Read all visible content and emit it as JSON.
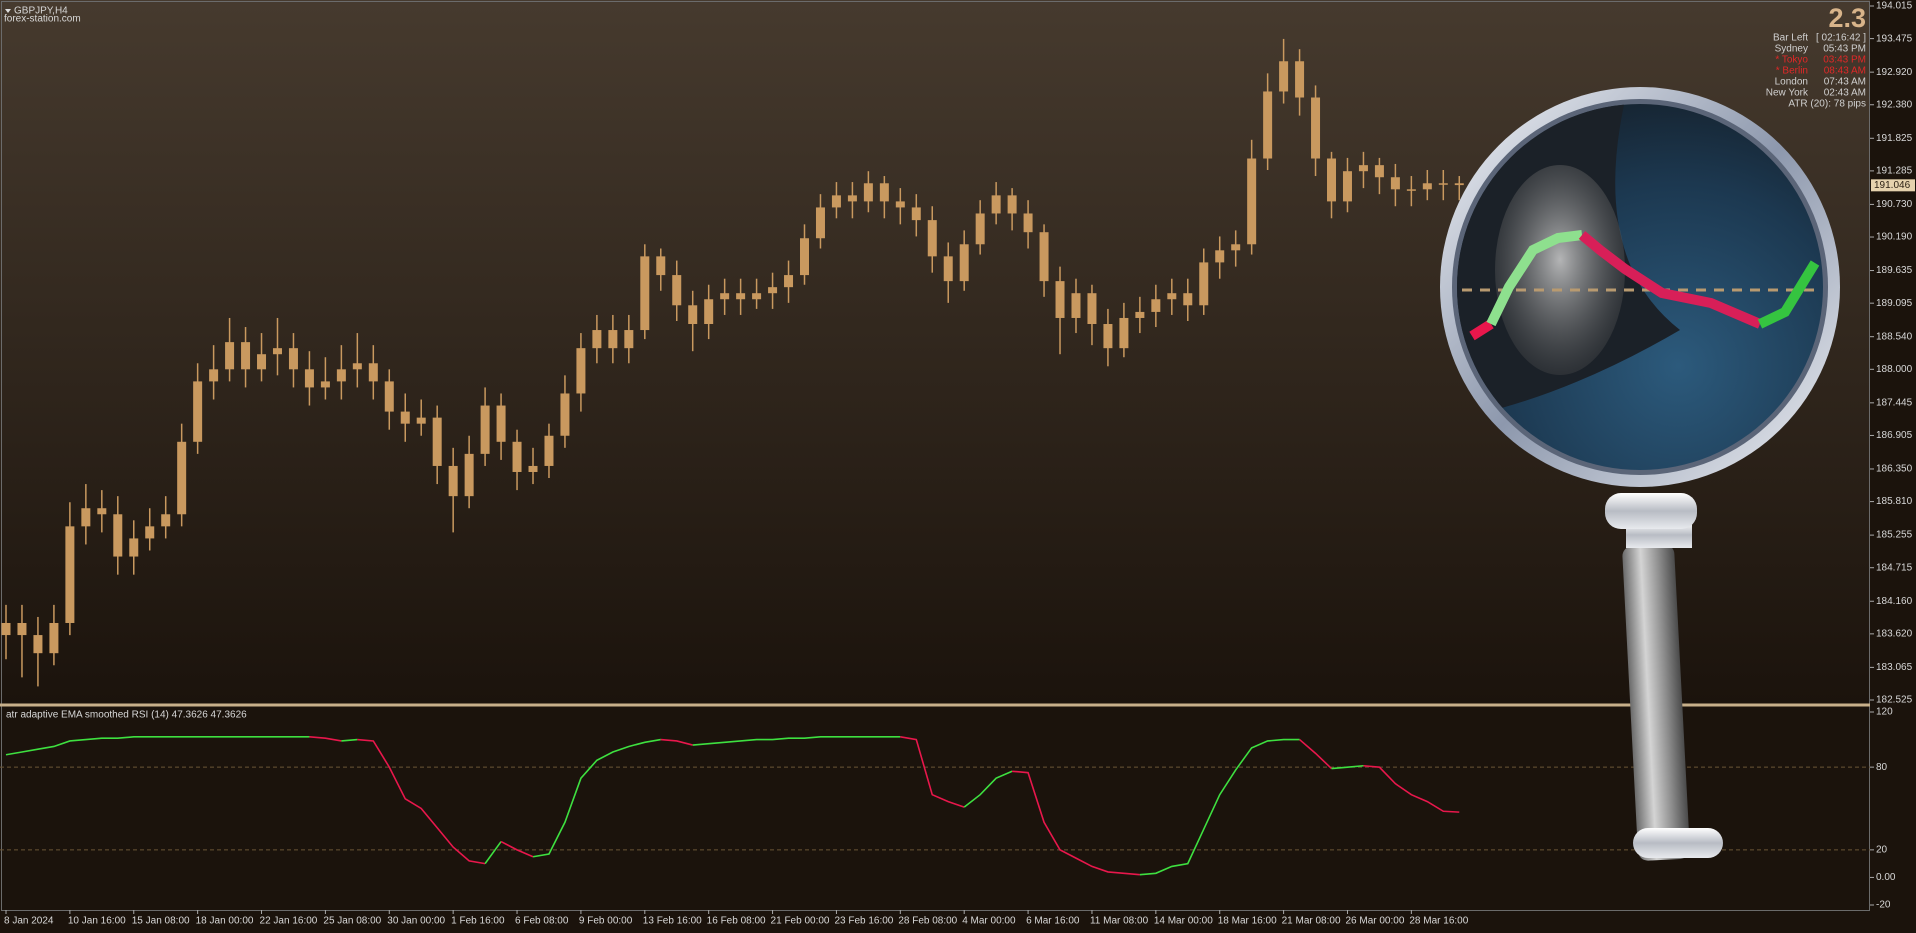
{
  "chart_data": [
    {
      "type": "candlestick",
      "title": "GBPJPY,H4",
      "subtitle": "forex-station.com",
      "color": "#c9995f",
      "ylim": [
        182.525,
        194.015
      ],
      "yticks": [
        194.015,
        193.475,
        {
          "value": 192.92,
          "label": "192.920"
        },
        {
          "value": 192.38,
          "label": "192.380"
        },
        191.825,
        191.285,
        {
          "value": 190.73,
          "label": "190.730"
        },
        {
          "value": 190.19,
          "label": "190.190"
        },
        189.635,
        189.095,
        {
          "value": 188.54,
          "label": "188.540"
        },
        {
          "value": 188,
          "label": "188.000"
        },
        187.445,
        186.905,
        {
          "value": 186.35,
          "label": "186.350"
        },
        {
          "value": 185.81,
          "label": "185.810"
        },
        185.255,
        184.715,
        {
          "value": 184.16,
          "label": "184.160"
        },
        {
          "value": 183.62,
          "label": "183.620"
        },
        183.065,
        182.525
      ],
      "current_price": 191.046,
      "open": [
        183.6,
        183.8,
        183.6,
        183.3,
        183.8,
        185.4,
        185.7,
        185.6,
        184.9,
        185.2,
        185.4,
        185.6,
        186.8,
        187.8,
        188.0,
        188.45,
        188.0,
        188.25,
        188.35,
        188.0,
        187.7,
        187.8,
        188.0,
        188.1,
        187.8,
        187.3,
        187.1,
        187.2,
        186.4,
        185.9,
        186.6,
        187.4,
        186.8,
        186.3,
        186.4,
        186.9,
        187.6,
        188.35,
        188.65,
        188.35,
        188.65,
        189.87,
        189.56,
        189.06,
        188.75,
        189.16,
        189.26,
        189.16,
        189.26,
        189.36,
        189.56,
        190.17,
        190.68,
        190.88,
        190.78,
        191.08,
        190.78,
        190.68,
        190.47,
        189.87,
        189.46,
        190.07,
        190.58,
        190.88,
        190.58,
        190.27,
        189.46,
        188.85,
        189.26,
        188.75,
        188.35,
        188.85,
        188.95,
        189.16,
        189.26,
        189.06,
        189.77,
        189.97,
        190.07,
        191.49,
        192.6,
        193.1,
        192.5,
        191.49,
        190.78,
        191.28,
        191.38,
        191.18,
        190.98,
        190.98,
        191.08,
        191.08
      ],
      "high": [
        184.1,
        184.1,
        183.9,
        184.1,
        185.8,
        186.1,
        186.0,
        185.9,
        185.5,
        185.7,
        185.9,
        187.1,
        188.1,
        188.4,
        188.85,
        188.7,
        188.6,
        188.85,
        188.6,
        188.3,
        188.2,
        188.4,
        188.6,
        188.4,
        188.0,
        187.6,
        187.5,
        187.4,
        186.7,
        186.9,
        187.7,
        187.6,
        187.0,
        186.7,
        187.1,
        187.9,
        188.6,
        188.9,
        188.9,
        188.9,
        190.07,
        190.0,
        189.8,
        189.3,
        189.4,
        189.5,
        189.5,
        189.5,
        189.6,
        189.8,
        190.4,
        190.9,
        191.1,
        191.1,
        191.28,
        191.2,
        191.0,
        190.9,
        190.7,
        190.1,
        190.3,
        190.8,
        191.1,
        191.0,
        190.8,
        190.4,
        189.7,
        189.5,
        189.4,
        189.0,
        189.1,
        189.2,
        189.4,
        189.5,
        189.5,
        190.0,
        190.2,
        190.3,
        191.8,
        192.9,
        193.47,
        193.3,
        192.7,
        191.6,
        191.5,
        191.6,
        191.5,
        191.4,
        191.2,
        191.3,
        191.3,
        191.2
      ],
      "low": [
        183.2,
        182.9,
        182.75,
        183.1,
        183.6,
        185.1,
        185.3,
        184.6,
        184.6,
        185.0,
        185.2,
        185.4,
        186.6,
        187.5,
        187.8,
        187.7,
        187.8,
        187.9,
        187.7,
        187.4,
        187.5,
        187.5,
        187.7,
        187.5,
        187.0,
        186.8,
        186.9,
        186.1,
        185.3,
        185.7,
        186.4,
        186.5,
        186.0,
        186.1,
        186.2,
        186.7,
        187.3,
        188.1,
        188.1,
        188.1,
        188.5,
        189.3,
        188.8,
        188.3,
        188.5,
        188.9,
        188.9,
        189.0,
        189.0,
        189.1,
        189.4,
        190.0,
        190.5,
        190.5,
        190.6,
        190.5,
        190.4,
        190.2,
        189.6,
        189.1,
        189.3,
        189.9,
        190.4,
        190.3,
        190.0,
        189.2,
        188.25,
        188.6,
        188.4,
        188.05,
        188.2,
        188.6,
        188.7,
        188.9,
        188.8,
        188.9,
        189.5,
        189.7,
        189.9,
        191.3,
        192.4,
        192.2,
        191.2,
        190.5,
        190.6,
        191.0,
        190.9,
        190.7,
        190.7,
        190.8,
        190.8,
        190.8
      ],
      "close": [
        183.8,
        183.6,
        183.3,
        183.8,
        185.4,
        185.7,
        185.6,
        184.9,
        185.2,
        185.4,
        185.6,
        186.8,
        187.8,
        188.0,
        188.45,
        188.0,
        188.25,
        188.35,
        188.0,
        187.7,
        187.8,
        188.0,
        188.1,
        187.8,
        187.3,
        187.1,
        187.2,
        186.4,
        185.9,
        186.6,
        187.4,
        186.8,
        186.3,
        186.4,
        186.9,
        187.6,
        188.35,
        188.65,
        188.35,
        188.65,
        189.87,
        189.56,
        189.06,
        188.75,
        189.16,
        189.26,
        189.16,
        189.26,
        189.36,
        189.56,
        190.17,
        190.68,
        190.88,
        190.78,
        191.08,
        190.78,
        190.68,
        190.47,
        189.87,
        189.46,
        190.07,
        190.58,
        190.88,
        190.58,
        190.27,
        189.46,
        188.85,
        189.26,
        188.75,
        188.35,
        188.85,
        188.95,
        189.16,
        189.26,
        189.06,
        189.77,
        189.97,
        190.07,
        191.49,
        192.6,
        193.1,
        192.5,
        191.49,
        190.78,
        191.28,
        191.38,
        191.18,
        190.98,
        190.98,
        191.08,
        191.08,
        191.05
      ]
    },
    {
      "type": "line",
      "title": "atr adaptive EMA smoothed RSI (14) 47.3626 47.3626",
      "up_color": "#3ee040",
      "down_color": "#e8174c",
      "ylim": [
        -20,
        120
      ],
      "yticks": [
        120,
        80,
        20,
        {
          "value": 0,
          "label": "0.00"
        },
        -20
      ],
      "grid_values": [
        80,
        20
      ],
      "categories": [
        "8 Jan 2024",
        null,
        null,
        null,
        "10 Jan 16:00",
        null,
        null,
        null,
        "15 Jan 08:00",
        null,
        null,
        null,
        "18 Jan 00:00",
        null,
        null,
        null,
        "22 Jan 16:00",
        null,
        null,
        null,
        "25 Jan 08:00",
        null,
        null,
        null,
        "30 Jan 00:00",
        null,
        null,
        null,
        "1 Feb 16:00",
        null,
        null,
        null,
        "6 Feb 08:00",
        null,
        null,
        null,
        "9 Feb 00:00",
        null,
        null,
        null,
        "13 Feb 16:00",
        null,
        null,
        null,
        "16 Feb 08:00",
        null,
        null,
        null,
        "21 Feb 00:00",
        null,
        null,
        null,
        "23 Feb 16:00",
        null,
        null,
        null,
        "28 Feb 08:00",
        null,
        null,
        null,
        "4 Mar 00:00",
        null,
        null,
        null,
        "6 Mar 16:00",
        null,
        null,
        null,
        "11 Mar 08:00",
        null,
        null,
        null,
        "14 Mar 00:00",
        null,
        null,
        null,
        "18 Mar 16:00",
        null,
        null,
        null,
        "21 Mar 08:00",
        null,
        null,
        null,
        "26 Mar 00:00",
        null,
        null,
        null,
        "28 Mar 16:00",
        null,
        null,
        null
      ],
      "values": [
        89,
        91,
        93,
        95,
        99,
        100,
        101,
        101,
        102,
        102,
        102,
        102,
        102,
        102,
        102,
        102,
        102,
        102,
        102,
        102,
        101,
        99,
        100,
        99,
        80,
        57,
        50,
        36,
        22,
        12,
        10,
        26,
        20,
        15,
        17,
        40,
        72,
        85,
        91,
        95,
        98,
        100,
        99,
        96,
        97,
        98,
        99,
        100,
        100,
        101,
        101,
        102,
        102,
        102,
        102,
        102,
        102,
        100,
        60,
        55,
        51,
        60,
        72,
        77,
        76,
        40,
        20,
        14,
        8,
        4,
        3,
        2,
        3,
        8,
        10,
        35,
        60,
        78,
        94,
        99,
        100,
        100,
        90,
        79,
        80,
        81,
        80,
        68,
        60,
        55,
        48,
        47.3626
      ]
    }
  ],
  "info_panel": {
    "headline": 2.3,
    "rows": [
      {
        "label": "Bar Left",
        "value": "[ 02:16:42 ]",
        "color": "#d0d0d0"
      },
      {
        "label": "Sydney",
        "value": "05:43 PM",
        "color": "#d0d0d0"
      },
      {
        "label": "* Tokyo",
        "value": "03:43 PM",
        "color": "#e02828"
      },
      {
        "label": "* Berlin",
        "value": "08:43 AM",
        "color": "#e02828"
      },
      {
        "label": "London",
        "value": "07:43 AM",
        "color": "#d0d0d0"
      },
      {
        "label": "New York",
        "value": "02:43 AM",
        "color": "#d0d0d0"
      },
      {
        "label": "ATR (20): 78 pips",
        "color": "#d0d0d0"
      }
    ]
  }
}
